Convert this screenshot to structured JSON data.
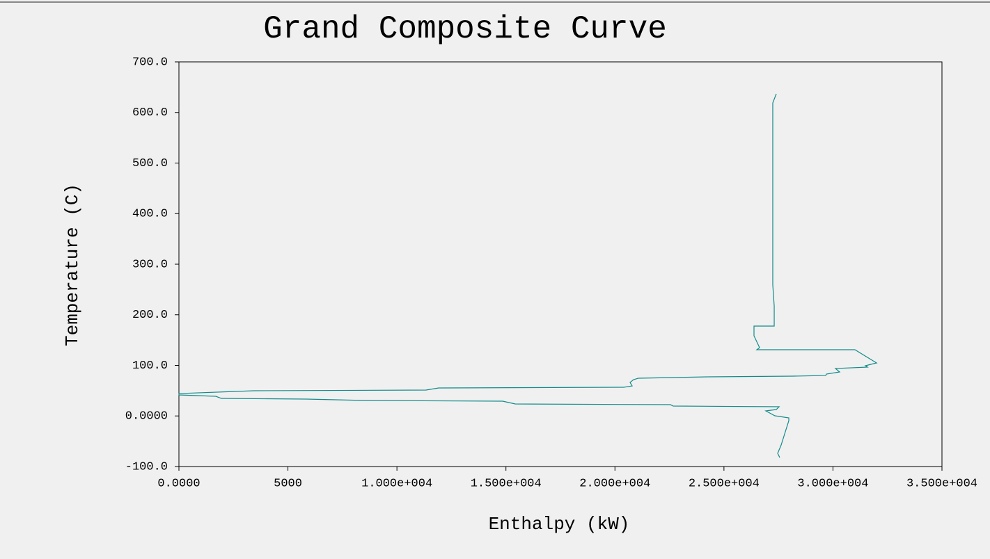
{
  "chart_data": {
    "type": "line",
    "title": "Grand Composite Curve",
    "x_label": "Enthalpy (kW)",
    "y_label": "Temperature (C)",
    "xlim": [
      0,
      35000
    ],
    "ylim": [
      -100,
      700
    ],
    "xticks": [
      {
        "value": 0,
        "label": "0.0000"
      },
      5000,
      {
        "value": 10000,
        "label": "1.000e+004"
      },
      {
        "value": 15000,
        "label": "1.500e+004"
      },
      {
        "value": 20000,
        "label": "2.000e+004"
      },
      {
        "value": 25000,
        "label": "2.500e+004"
      },
      {
        "value": 30000,
        "label": "3.000e+004"
      },
      {
        "value": 35000,
        "label": "3.500e+004"
      }
    ],
    "yticks": [
      {
        "value": -100,
        "label": "-100.0"
      },
      {
        "value": 0,
        "label": "0.0000"
      },
      {
        "value": 100,
        "label": "100.0"
      },
      {
        "value": 200,
        "label": "200.0"
      },
      {
        "value": 300,
        "label": "300.0"
      },
      {
        "value": 400,
        "label": "400.0"
      },
      {
        "value": 500,
        "label": "500.0"
      },
      {
        "value": 600,
        "label": "600.0"
      },
      {
        "value": 700,
        "label": "700.0"
      }
    ],
    "grid": false,
    "series": [
      {
        "name": "Grand Composite Curve",
        "color": "#138a8a",
        "x": [
          27400,
          27240,
          27240,
          27305,
          27305,
          26378,
          26378,
          26634,
          26506,
          31009,
          32000,
          31488,
          31584,
          30115,
          30306,
          29700,
          29668,
          28167,
          24303,
          21077,
          20854,
          20694,
          20790,
          20406,
          11912,
          11337,
          3449,
          0,
          0,
          1693,
          1948,
          5844,
          8559,
          14850,
          15425,
          22546,
          22674,
          27528,
          27400,
          26921,
          27336,
          27975,
          27975,
          27624,
          27464,
          27560
        ],
        "values": [
          636.8,
          618.9,
          258.8,
          217.5,
          177.7,
          177.7,
          158.4,
          135,
          130.9,
          130.9,
          104.8,
          99.3,
          96.6,
          93.8,
          86.9,
          82.8,
          80,
          78.7,
          77.3,
          74.6,
          71.8,
          66.3,
          59.4,
          56.7,
          55.3,
          51.2,
          49.8,
          44.3,
          41.6,
          38.8,
          34.7,
          33.3,
          30.6,
          29.2,
          23.7,
          22.3,
          19.6,
          18.2,
          12.7,
          10,
          0.3,
          -3.8,
          -9.3,
          -57.4,
          -73.9,
          -82.2
        ]
      }
    ]
  }
}
